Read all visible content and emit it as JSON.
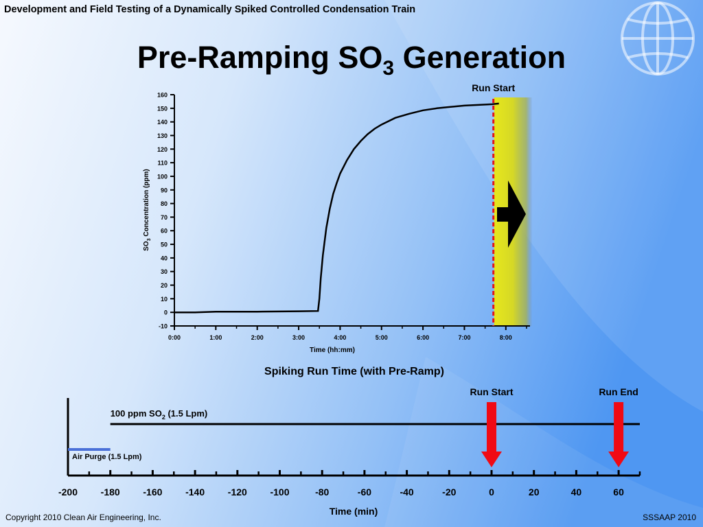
{
  "slide": {
    "header": "Development and Field Testing of a Dynamically Spiked Controlled Condensation Train",
    "title_main": "Pre-Ramping SO",
    "title_sub": "3",
    "title_end": " Generation",
    "footer_left": "Copyright 2010 Clean Air Engineering, Inc.",
    "footer_right": "SSSAAP 2010"
  },
  "colors": {
    "background_light": "#f2f7fd",
    "background_dark": "#4f97f2",
    "curve": "#000000",
    "run_start_line": "#e0141e",
    "highlight_band": "#e4e61a",
    "air_purge": "#4a70d8",
    "arrow": "#f00a14"
  },
  "chart_data": [
    {
      "type": "line",
      "title": "",
      "xlabel": "Time (hh:mm)",
      "ylabel_main": "SO",
      "ylabel_sub": "3",
      "ylabel_end": " Concentration (ppm)",
      "ylim": [
        -10,
        160
      ],
      "xlim": [
        0,
        515
      ],
      "yticks": [
        -10,
        0,
        10,
        20,
        30,
        40,
        50,
        60,
        70,
        80,
        90,
        100,
        110,
        120,
        130,
        140,
        150,
        160
      ],
      "xticks": [
        {
          "value": 0,
          "label": "0:00"
        },
        {
          "value": 60,
          "label": "1:00"
        },
        {
          "value": 120,
          "label": "2:00"
        },
        {
          "value": 180,
          "label": "3:00"
        },
        {
          "value": 240,
          "label": "4:00"
        },
        {
          "value": 300,
          "label": "5:00"
        },
        {
          "value": 360,
          "label": "6:00"
        },
        {
          "value": 420,
          "label": "7:00"
        },
        {
          "value": 480,
          "label": "8:00"
        }
      ],
      "grid": false,
      "series": [
        {
          "x": [
            0,
            30,
            60,
            120,
            180,
            208,
            210,
            212,
            215,
            220,
            225,
            230,
            235,
            240,
            250,
            260,
            270,
            280,
            290,
            300,
            320,
            340,
            360,
            380,
            400,
            420,
            440,
            460,
            470
          ],
          "y": [
            0,
            0,
            0.5,
            0.5,
            0.8,
            1,
            10,
            25,
            42,
            62,
            76,
            87,
            95,
            102,
            112,
            120,
            126,
            131,
            135,
            138,
            143,
            146,
            148.5,
            150,
            151,
            152,
            152.5,
            153,
            153.5
          ]
        }
      ],
      "annotations": [
        {
          "label": "Run Start",
          "x": 462
        }
      ]
    },
    {
      "type": "timeline",
      "title": "Spiking Run Time (with Pre-Ramp)",
      "xlabel": "Time (min)",
      "xlim": [
        -200,
        70
      ],
      "xticks": [
        -200,
        -180,
        -160,
        -140,
        -120,
        -100,
        -80,
        -60,
        -40,
        -20,
        0,
        20,
        40,
        60
      ],
      "bars": [
        {
          "label_main": "100 ppm SO",
          "label_sub": "2",
          "label_end": " (1.5 Lpm)",
          "start": -180,
          "end": 70
        },
        {
          "label": "Air Purge (1.5 Lpm)",
          "start": -200,
          "end": -180
        }
      ],
      "markers": [
        {
          "label": "Run Start",
          "x": 0
        },
        {
          "label": "Run End",
          "x": 60
        }
      ]
    }
  ]
}
